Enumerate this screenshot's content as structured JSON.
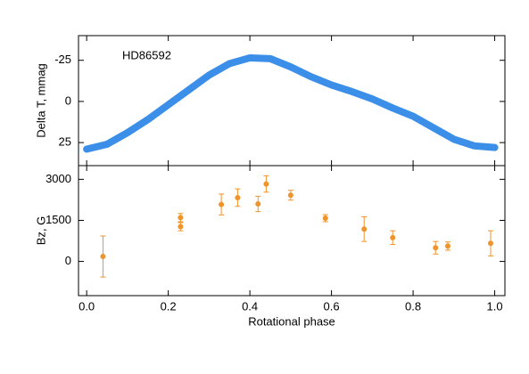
{
  "chart_data": [
    {
      "type": "line",
      "annotation": "HD86592",
      "y_label": "Delta T, mmag",
      "x": [
        0,
        0.05,
        0.1,
        0.15,
        0.2,
        0.25,
        0.3,
        0.35,
        0.4,
        0.45,
        0.5,
        0.55,
        0.6,
        0.65,
        0.7,
        0.75,
        0.8,
        0.85,
        0.9,
        0.95,
        1.0
      ],
      "series": [
        {
          "color": "#3b8fe8",
          "values": [
            29,
            26,
            19,
            11,
            2,
            -7,
            -16,
            -23,
            -26.5,
            -26,
            -21,
            -15,
            -10,
            -6,
            -1.5,
            4,
            9,
            16,
            23,
            27,
            28
          ]
        }
      ],
      "xlim": [
        -0.02,
        1.025
      ],
      "ylim": [
        -40,
        39
      ],
      "y_inverted": true,
      "yticks": [
        -25,
        0,
        25
      ]
    },
    {
      "type": "scatter",
      "x_label": "Rotational phase",
      "y_label": "Bz, G",
      "x": [
        0.04,
        0.23,
        0.23,
        0.33,
        0.37,
        0.42,
        0.44,
        0.5,
        0.585,
        0.68,
        0.75,
        0.855,
        0.885,
        0.99
      ],
      "series": [
        {
          "color": "#f0932a",
          "values": [
            180,
            1600,
            1270,
            2080,
            2330,
            2100,
            2830,
            2420,
            1580,
            1180,
            870,
            500,
            560,
            660
          ],
          "errors": [
            750,
            150,
            150,
            380,
            320,
            280,
            300,
            180,
            130,
            450,
            250,
            230,
            150,
            460
          ]
        }
      ],
      "xlim": [
        -0.02,
        1.025
      ],
      "ylim": [
        -1250,
        3500
      ],
      "yticks": [
        0,
        1500,
        3000
      ],
      "xticks": [
        {
          "value": 0,
          "label": "0.0"
        },
        0.2,
        0.4,
        0.6,
        0.8,
        {
          "value": 1,
          "label": "1.0"
        }
      ]
    }
  ]
}
